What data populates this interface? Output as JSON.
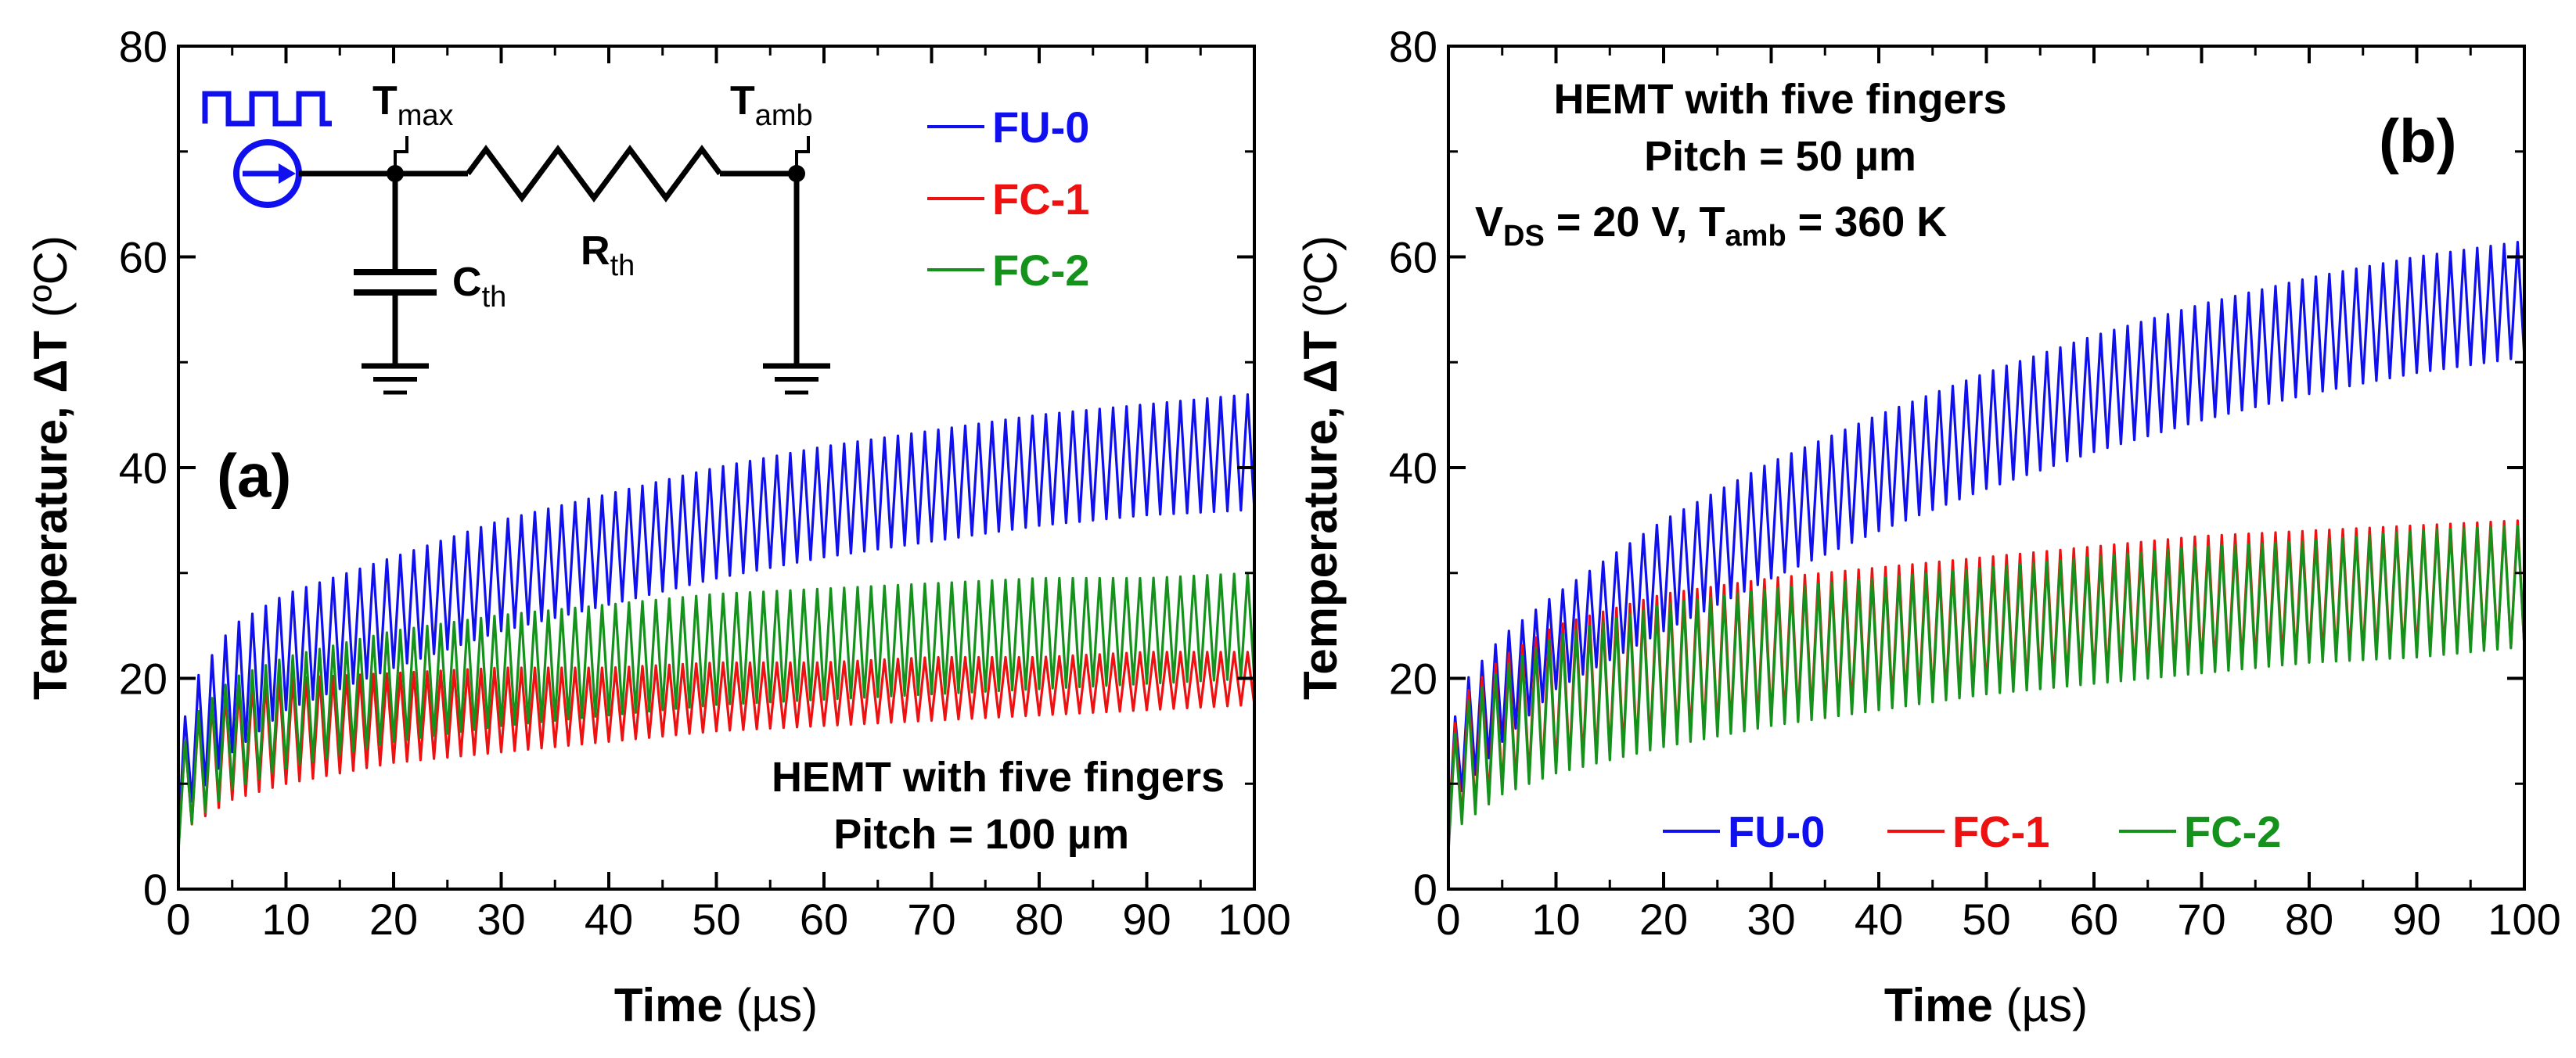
{
  "chart_data": [
    {
      "panel": "(a)",
      "type": "line",
      "xlabel": "Time",
      "xunit": "(µs)",
      "ylabel": "Temperature, ΔT",
      "yunit": "(ºC)",
      "xlim": [
        0,
        100
      ],
      "ylim": [
        0,
        80
      ],
      "xticks": [
        0,
        10,
        20,
        30,
        40,
        50,
        60,
        70,
        80,
        90,
        100
      ],
      "yticks": [
        0,
        20,
        40,
        60,
        80
      ],
      "pulse_period_us": 1.25,
      "legend": {
        "placement": "top-right",
        "entries": [
          "FU-0",
          "FC-1",
          "FC-2"
        ]
      },
      "annotation_lines": [
        "HEMT with five fingers",
        "Pitch = 100 µm"
      ],
      "series": [
        {
          "name": "FU-0",
          "color": "#1010ee",
          "x": [
            0,
            1,
            5,
            10,
            20,
            30,
            40,
            50,
            60,
            70,
            80,
            90,
            100
          ],
          "upper": [
            12,
            19,
            25,
            28,
            31.5,
            35,
            37.5,
            40,
            42,
            43.5,
            45,
            46,
            47
          ],
          "lower": [
            5,
            8,
            13,
            17,
            21,
            24.5,
            27,
            29.5,
            31.5,
            33,
            34.5,
            35.5,
            36
          ]
        },
        {
          "name": "FC-1",
          "color": "#ee1111",
          "x": [
            0,
            1,
            5,
            10,
            20,
            30,
            40,
            50,
            60,
            70,
            80,
            90,
            100
          ],
          "upper": [
            11,
            16,
            19,
            20,
            20.5,
            21,
            21,
            21.5,
            21.5,
            22,
            22,
            22.5,
            22.5
          ],
          "lower": [
            4,
            6,
            8.5,
            10,
            12,
            13,
            14,
            15,
            15.5,
            16,
            16.5,
            17,
            17.5
          ]
        },
        {
          "name": "FC-2",
          "color": "#14921c",
          "x": [
            0,
            1,
            5,
            10,
            20,
            30,
            40,
            50,
            60,
            70,
            80,
            90,
            100
          ],
          "upper": [
            11,
            16,
            20,
            22,
            24.5,
            26,
            27,
            28,
            28.5,
            29,
            29.5,
            29.5,
            30
          ],
          "lower": [
            3.5,
            6,
            9.5,
            11.5,
            14,
            15.5,
            16.5,
            17.5,
            18,
            18.5,
            19,
            19.5,
            20
          ]
        }
      ]
    },
    {
      "panel": "(b)",
      "type": "line",
      "xlabel": "Time",
      "xunit": "(µs)",
      "ylabel": "Temperature, ΔT",
      "yunit": "(ºC)",
      "xlim": [
        0,
        100
      ],
      "ylim": [
        0,
        80
      ],
      "xticks": [
        0,
        10,
        20,
        30,
        40,
        50,
        60,
        70,
        80,
        90,
        100
      ],
      "yticks": [
        0,
        20,
        40,
        60,
        80
      ],
      "pulse_period_us": 1.25,
      "legend": {
        "placement": "bottom-center",
        "entries": [
          "FU-0",
          "FC-1",
          "FC-2"
        ]
      },
      "annotation_lines": [
        "HEMT with five fingers",
        "Pitch = 50 µm"
      ],
      "series": [
        {
          "name": "FU-0",
          "color": "#1010ee",
          "x": [
            0,
            1,
            5,
            10,
            20,
            30,
            40,
            50,
            60,
            70,
            80,
            90,
            100
          ],
          "upper": [
            12,
            19,
            24,
            28,
            35,
            40.5,
            45,
            49,
            52.5,
            55.5,
            58,
            60,
            61.5
          ],
          "lower": [
            5,
            9,
            14,
            19,
            24.5,
            29.5,
            34,
            38,
            41.5,
            44.5,
            47,
            49,
            50.5
          ]
        },
        {
          "name": "FC-1",
          "color": "#ee1111",
          "x": [
            0,
            1,
            5,
            10,
            20,
            30,
            40,
            50,
            60,
            70,
            80,
            90,
            100
          ],
          "upper": [
            12,
            18,
            22,
            25,
            28,
            29.5,
            30.5,
            31.5,
            32.5,
            33.5,
            34,
            34.5,
            35
          ],
          "lower": [
            4,
            6.5,
            9.5,
            11.5,
            14,
            16,
            17.5,
            19,
            20,
            21,
            22,
            22.5,
            23
          ]
        },
        {
          "name": "FC-2",
          "color": "#14921c",
          "x": [
            0,
            1,
            5,
            10,
            20,
            30,
            40,
            50,
            60,
            70,
            80,
            90,
            100
          ],
          "upper": [
            11,
            17,
            21,
            24,
            27,
            28.5,
            29.5,
            30.5,
            31.5,
            32.5,
            33,
            34,
            34.5
          ],
          "lower": [
            3.5,
            6,
            9,
            11,
            13.5,
            15.5,
            17,
            18.5,
            19.5,
            20.5,
            21.5,
            22,
            23
          ]
        }
      ]
    }
  ],
  "panel_b_conditions": {
    "vds_symbol": "V",
    "vds_sub": "DS",
    "vds_value": " = 20 V, ",
    "tamb_symbol": "T",
    "tamb_sub": "amb",
    "tamb_value": " = 360 K"
  },
  "circuit": {
    "tmax_symbol": "T",
    "tmax_sub": "max",
    "tamb_symbol": "T",
    "tamb_sub": "amb",
    "rth_symbol": "R",
    "rth_sub": "th",
    "cth_symbol": "C",
    "cth_sub": "th",
    "source_color": "#1010ee",
    "icons": [
      "pulse-train-icon",
      "current-source-icon",
      "resistor-icon",
      "capacitor-icon",
      "ground-icon"
    ]
  }
}
